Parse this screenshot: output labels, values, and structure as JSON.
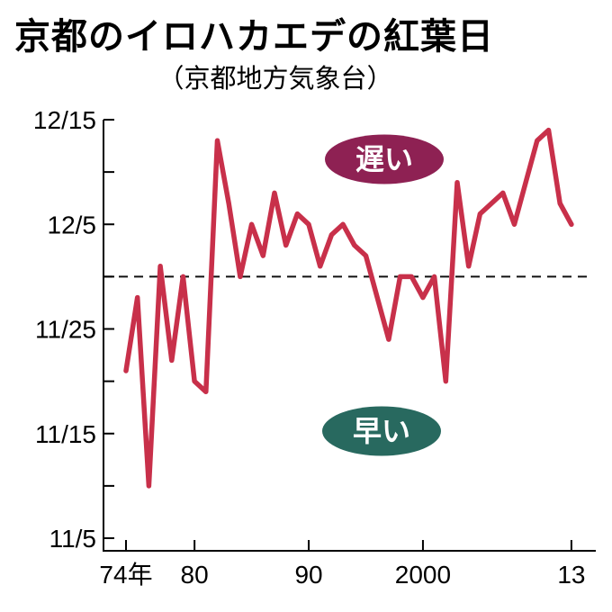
{
  "title": "京都のイロハカエデの紅葉日",
  "subtitle": "（京都地方気象台）",
  "colors": {
    "line": "#C8304A",
    "late_oval": "#8E2153",
    "early_oval": "#28695F",
    "axis": "#000000"
  },
  "chart_data": {
    "type": "line",
    "title": "京都のイロハカエデの紅葉日",
    "subtitle": "（京都地方気象台）",
    "x": [
      1974,
      1975,
      1976,
      1977,
      1978,
      1979,
      1980,
      1981,
      1982,
      1983,
      1984,
      1985,
      1986,
      1987,
      1988,
      1989,
      1990,
      1991,
      1992,
      1993,
      1994,
      1995,
      1996,
      1997,
      1998,
      1999,
      2000,
      2001,
      2002,
      2003,
      2004,
      2005,
      2006,
      2007,
      2008,
      2009,
      2010,
      2011,
      2012,
      2013
    ],
    "values": [
      "11/21",
      "11/28",
      "11/10",
      "12/1",
      "11/22",
      "11/30",
      "11/20",
      "11/19",
      "12/13",
      "12/7",
      "11/30",
      "12/5",
      "12/2",
      "12/8",
      "12/3",
      "12/6",
      "12/5",
      "12/1",
      "12/4",
      "12/5",
      "12/3",
      "12/2",
      "11/28",
      "11/24",
      "11/30",
      "11/30",
      "11/28",
      "11/30",
      "11/20",
      "12/9",
      "12/1",
      "12/6",
      "12/7",
      "12/8",
      "12/5",
      "12/9",
      "12/13",
      "12/14",
      "12/7",
      "12/5"
    ],
    "x_ticks": [
      {
        "year": 1974,
        "label": "74年"
      },
      {
        "year": 1980,
        "label": "80"
      },
      {
        "year": 1990,
        "label": "90"
      },
      {
        "year": 2000,
        "label": "2000"
      },
      {
        "year": 2013,
        "label": "13"
      }
    ],
    "y_ticks": [
      "11/5",
      "11/10",
      "11/15",
      "11/20",
      "11/25",
      "11/30",
      "12/5",
      "12/10",
      "12/15"
    ],
    "y_tick_labeled": [
      "11/5",
      "11/15",
      "11/25",
      "12/5",
      "12/15"
    ],
    "y_range": [
      "11/5",
      "12/15"
    ],
    "baseline_date": "11/30",
    "grid": false,
    "annotations": [
      {
        "text": "遅い"
      },
      {
        "text": "早い"
      }
    ]
  }
}
